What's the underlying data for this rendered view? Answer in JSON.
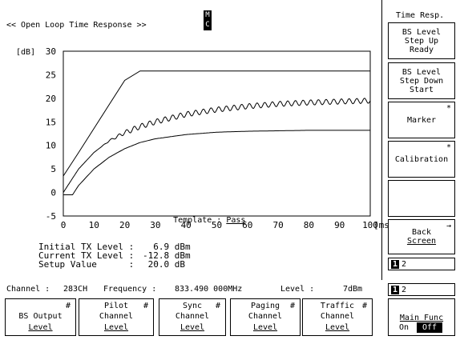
{
  "screen": {
    "title": "<< Open Loop Time Response >>",
    "mode_indicator": [
      "M",
      "C"
    ]
  },
  "chart_data": {
    "type": "line",
    "ylabel": "[dB]",
    "xlabel": "[ms]",
    "xlim": [
      0,
      100
    ],
    "ylim": [
      -5,
      30
    ],
    "x_ticks": [
      "0",
      "10",
      "20",
      "30",
      "40",
      "50",
      "60",
      "70",
      "80",
      "90",
      "100"
    ],
    "y_ticks": [
      "30",
      "25",
      "20",
      "15",
      "10",
      "5",
      "0",
      "-5"
    ],
    "template_label": "Template : ",
    "template_result": "Pass",
    "series": [
      {
        "role": "upper-template",
        "x": [
          0,
          5,
          10,
          15,
          20,
          25,
          100
        ],
        "y": [
          3.5,
          8.5,
          13.6,
          18.7,
          23.8,
          25.8,
          25.8
        ]
      },
      {
        "role": "measured-response",
        "x": [
          0,
          5,
          10,
          15,
          20,
          25,
          30,
          40,
          50,
          60,
          70,
          80,
          90,
          100
        ],
        "y": [
          0,
          5,
          8.5,
          11,
          12.7,
          14,
          15,
          16.6,
          17.6,
          18.3,
          18.8,
          19.1,
          19.3,
          19.5
        ]
      },
      {
        "role": "lower-template",
        "x": [
          0,
          3,
          5,
          10,
          15,
          20,
          25,
          30,
          40,
          50,
          60,
          70,
          80,
          90,
          100
        ],
        "y": [
          -0.5,
          -0.5,
          1.5,
          5,
          7.5,
          9.3,
          10.6,
          11.4,
          12.3,
          12.8,
          13,
          13.1,
          13.2,
          13.2,
          13.2
        ]
      }
    ]
  },
  "levels": {
    "initial_label": "Initial TX Level :",
    "initial_value": "  6.9 dBm",
    "current_label": "Current TX Level :",
    "current_value": "-12.8 dBm",
    "setup_label": "Setup Value      :",
    "setup_value": " 20.0 dB"
  },
  "status": {
    "channel_label": "Channel :",
    "channel_value": "283CH",
    "frequency_label": "Frequency :",
    "frequency_value": "833.490 000MHz",
    "level_label": "Level :",
    "level_value": "7dBm"
  },
  "softkeys": {
    "header": "Time Resp.",
    "bs_step_up": [
      "BS Level",
      "Step Up",
      "Ready"
    ],
    "bs_step_down": [
      "BS Level",
      "Step Down",
      "Start"
    ],
    "marker": "Marker",
    "marker_flag": "*",
    "calibration": "Calibration",
    "calibration_flag": "*",
    "back_screen": [
      "Back",
      "Screen"
    ],
    "back_arrow": "→",
    "page1": {
      "selected": "1",
      "other": "2"
    },
    "page2": {
      "selected": "1",
      "other": "2"
    },
    "main_func": "Main Func",
    "main_on": "On",
    "main_off": "Off"
  },
  "bottom_keys": [
    {
      "hash": "#",
      "l1": "",
      "l2": "BS Output",
      "l3": "Level"
    },
    {
      "hash": "#",
      "l1": "Pilot",
      "l2": "Channel",
      "l3": "Level"
    },
    {
      "hash": "#",
      "l1": "Sync",
      "l2": "Channel",
      "l3": "Level"
    },
    {
      "hash": "#",
      "l1": "Paging",
      "l2": "Channel",
      "l3": "Level"
    },
    {
      "hash": "#",
      "l1": "Traffic",
      "l2": "Channel",
      "l3": "Level"
    }
  ]
}
